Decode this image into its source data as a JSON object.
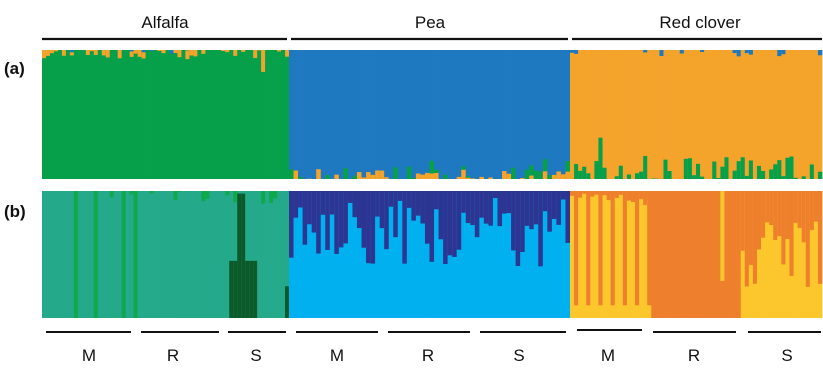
{
  "chart_data": {
    "type": "stacked-bar",
    "hosts": [
      "Alfalfa",
      "Pea",
      "Red clover"
    ],
    "panels": [
      {
        "label": "(a)",
        "clusters": 3
      },
      {
        "label": "(b)",
        "clusters": 6
      }
    ],
    "group_labels": [
      "M",
      "R",
      "S",
      "M",
      "R",
      "S",
      "M",
      "R",
      "S"
    ],
    "colors": {
      "a": {
        "alfalfa": "#07a04a",
        "pea": "#1f79c0",
        "red_clover": "#f4a32b"
      },
      "b": {
        "alfalfa_main": "#24a98a",
        "alfalfa_light": "#0fa84b",
        "alfalfa_dark": "#0c5a2a",
        "pea_main": "#00b0ef",
        "pea_dark": "#2d3593",
        "red_clover_main": "#ee7f2d",
        "red_clover_light": "#fcc72c"
      }
    },
    "individuals_per_host": 62
  }
}
